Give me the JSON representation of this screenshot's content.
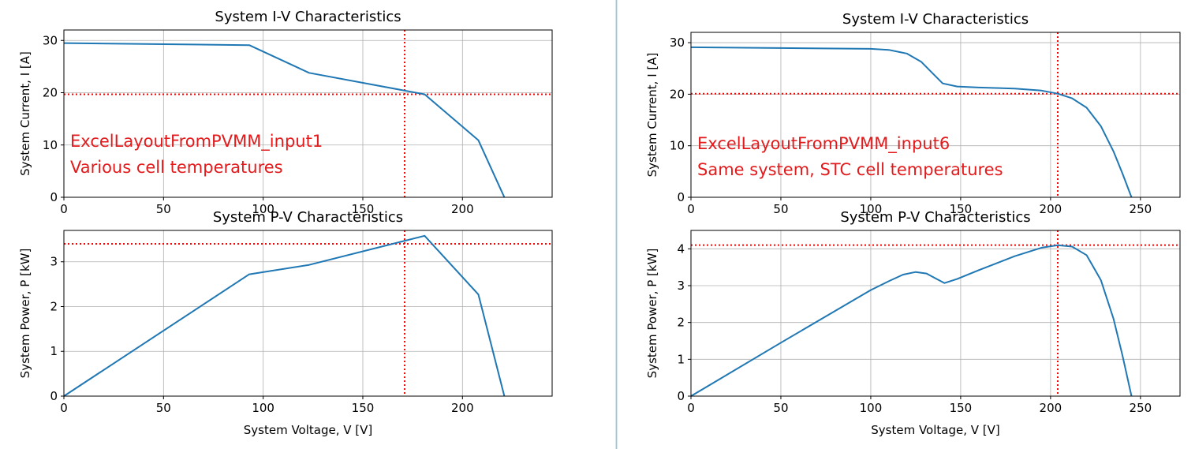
{
  "chart_data": [
    {
      "type": "line",
      "title": "System I-V Characteristics",
      "xlabel": "",
      "ylabel": "System Current, I [A]",
      "xlim": [
        0,
        245
      ],
      "ylim": [
        0,
        32
      ],
      "xticks": [
        0,
        50,
        100,
        150,
        200
      ],
      "yticks": [
        0,
        10,
        20,
        30
      ],
      "grid": true,
      "annotations": [
        "ExcelLayoutFromPVMM_input1",
        "Various cell temperatures"
      ],
      "ref_lines": {
        "x": 171,
        "y": 19.7
      },
      "series": [
        {
          "x": [
            0,
            93,
            123,
            181,
            208,
            221
          ],
          "y": [
            29.5,
            29.1,
            23.8,
            19.7,
            10.9,
            0
          ]
        }
      ]
    },
    {
      "type": "line",
      "title": "System P-V Characteristics",
      "xlabel": "System Voltage, V [V]",
      "ylabel": "System Power, P [kW]",
      "xlim": [
        0,
        245
      ],
      "ylim": [
        0,
        3.7
      ],
      "xticks": [
        0,
        50,
        100,
        150,
        200
      ],
      "yticks": [
        0,
        1,
        2,
        3
      ],
      "grid": true,
      "ref_lines": {
        "x": 171,
        "y": 3.4
      },
      "series": [
        {
          "x": [
            0,
            93,
            123,
            181,
            208,
            221
          ],
          "y": [
            0,
            2.72,
            2.93,
            3.58,
            2.27,
            0
          ]
        }
      ]
    },
    {
      "type": "line",
      "title": "System I-V Characteristics",
      "xlabel": "",
      "ylabel": "System Current, I [A]",
      "xlim": [
        0,
        272
      ],
      "ylim": [
        0,
        32
      ],
      "xticks": [
        0,
        50,
        100,
        150,
        200,
        250
      ],
      "yticks": [
        0,
        10,
        20,
        30
      ],
      "grid": true,
      "annotations": [
        "ExcelLayoutFromPVMM_input6",
        "Same system, STC cell temperatures"
      ],
      "ref_lines": {
        "x": 204,
        "y": 20.1
      },
      "series": [
        {
          "x": [
            0,
            100,
            110,
            120,
            128,
            134,
            140,
            148,
            160,
            180,
            195,
            204,
            212,
            220,
            228,
            235,
            240,
            245
          ],
          "y": [
            29.1,
            28.8,
            28.6,
            27.9,
            26.3,
            24.2,
            22.1,
            21.5,
            21.3,
            21.1,
            20.7,
            20.1,
            19.2,
            17.4,
            13.8,
            8.9,
            4.6,
            0
          ]
        }
      ]
    },
    {
      "type": "line",
      "title": "System P-V Characteristics",
      "xlabel": "System Voltage, V [V]",
      "ylabel": "System Power, P [kW]",
      "xlim": [
        0,
        272
      ],
      "ylim": [
        0,
        4.5
      ],
      "xticks": [
        0,
        50,
        100,
        150,
        200,
        250
      ],
      "yticks": [
        0,
        1,
        2,
        3,
        4
      ],
      "grid": true,
      "ref_lines": {
        "x": 204,
        "y": 4.1
      },
      "series": [
        {
          "x": [
            0,
            50,
            100,
            110,
            118,
            125,
            131,
            136,
            141,
            148,
            160,
            180,
            195,
            204,
            212,
            220,
            228,
            235,
            240,
            245
          ],
          "y": [
            0,
            1.45,
            2.88,
            3.12,
            3.3,
            3.37,
            3.33,
            3.2,
            3.07,
            3.18,
            3.42,
            3.8,
            4.03,
            4.1,
            4.06,
            3.83,
            3.15,
            2.1,
            1.1,
            0
          ]
        }
      ]
    }
  ]
}
